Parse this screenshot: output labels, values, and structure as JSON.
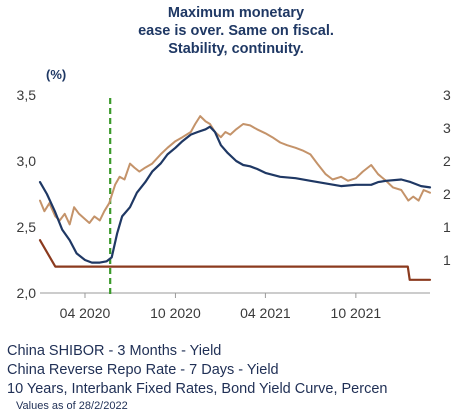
{
  "chart_data": {
    "type": "line",
    "title_lines": [
      "Maximum monetary",
      "ease is over. Same on fiscal.",
      "Stability, continuity."
    ],
    "ylabel": "(%)",
    "ylim": [
      2.0,
      3.5
    ],
    "y_ticks": [
      "3,5",
      "3,0",
      "2,5",
      "2,0"
    ],
    "right_ticks": [
      "3",
      "3",
      "2",
      "2",
      "1",
      "1"
    ],
    "x_ticks": [
      "04 2020",
      "10 2020",
      "04 2021",
      "10 2021"
    ],
    "x_tick_dates": [
      "2020-04-01",
      "2020-10-01",
      "2021-04-01",
      "2021-10-01"
    ],
    "xlim": [
      "2020-01-01",
      "2022-02-28"
    ],
    "vertical_marker": {
      "date": "2020-05-22",
      "color": "#3a9a2a",
      "style": "dashed"
    },
    "series": [
      {
        "name": "China SHIBOR - 3 Months - Yield",
        "color": "#1f3864",
        "axis": "left",
        "points": [
          [
            "2020-01-01",
            2.84
          ],
          [
            "2020-01-15",
            2.75
          ],
          [
            "2020-01-31",
            2.62
          ],
          [
            "2020-02-15",
            2.48
          ],
          [
            "2020-03-01",
            2.4
          ],
          [
            "2020-03-15",
            2.3
          ],
          [
            "2020-04-01",
            2.25
          ],
          [
            "2020-04-15",
            2.23
          ],
          [
            "2020-05-01",
            2.23
          ],
          [
            "2020-05-15",
            2.24
          ],
          [
            "2020-05-25",
            2.27
          ],
          [
            "2020-06-05",
            2.45
          ],
          [
            "2020-06-15",
            2.58
          ],
          [
            "2020-07-01",
            2.65
          ],
          [
            "2020-07-15",
            2.76
          ],
          [
            "2020-08-01",
            2.84
          ],
          [
            "2020-08-15",
            2.92
          ],
          [
            "2020-09-01",
            2.98
          ],
          [
            "2020-09-15",
            3.05
          ],
          [
            "2020-10-01",
            3.1
          ],
          [
            "2020-10-15",
            3.15
          ],
          [
            "2020-11-01",
            3.2
          ],
          [
            "2020-11-15",
            3.22
          ],
          [
            "2020-12-01",
            3.24
          ],
          [
            "2020-12-10",
            3.26
          ],
          [
            "2020-12-20",
            3.22
          ],
          [
            "2021-01-01",
            3.12
          ],
          [
            "2021-01-15",
            3.06
          ],
          [
            "2021-02-01",
            3.0
          ],
          [
            "2021-02-15",
            2.97
          ],
          [
            "2021-03-01",
            2.96
          ],
          [
            "2021-03-15",
            2.94
          ],
          [
            "2021-04-01",
            2.91
          ],
          [
            "2021-05-01",
            2.88
          ],
          [
            "2021-06-01",
            2.87
          ],
          [
            "2021-07-01",
            2.85
          ],
          [
            "2021-08-01",
            2.83
          ],
          [
            "2021-09-01",
            2.81
          ],
          [
            "2021-10-01",
            2.82
          ],
          [
            "2021-11-01",
            2.82
          ],
          [
            "2021-11-15",
            2.84
          ],
          [
            "2021-12-01",
            2.85
          ],
          [
            "2022-01-01",
            2.86
          ],
          [
            "2022-01-20",
            2.84
          ],
          [
            "2022-02-10",
            2.81
          ],
          [
            "2022-02-28",
            2.8
          ]
        ]
      },
      {
        "name": "China Reverse Repo Rate - 7 Days - Yield",
        "color": "#8b3a1e",
        "axis": "left",
        "points": [
          [
            "2020-01-01",
            2.4
          ],
          [
            "2020-02-01",
            2.2
          ],
          [
            "2020-03-31",
            2.2
          ],
          [
            "2020-04-01",
            2.2
          ],
          [
            "2022-01-14",
            2.2
          ],
          [
            "2022-01-18",
            2.1
          ],
          [
            "2022-02-28",
            2.1
          ]
        ]
      },
      {
        "name": "10 Years, Interbank Fixed Rates, Bond Yield Curve, Percen",
        "color": "#c4936a",
        "axis": "left",
        "points": [
          [
            "2020-01-01",
            2.7
          ],
          [
            "2020-01-10",
            2.62
          ],
          [
            "2020-01-20",
            2.68
          ],
          [
            "2020-02-01",
            2.58
          ],
          [
            "2020-02-10",
            2.55
          ],
          [
            "2020-02-20",
            2.6
          ],
          [
            "2020-03-01",
            2.52
          ],
          [
            "2020-03-10",
            2.65
          ],
          [
            "2020-03-20",
            2.6
          ],
          [
            "2020-04-01",
            2.56
          ],
          [
            "2020-04-10",
            2.53
          ],
          [
            "2020-04-20",
            2.58
          ],
          [
            "2020-05-01",
            2.55
          ],
          [
            "2020-05-10",
            2.62
          ],
          [
            "2020-05-20",
            2.68
          ],
          [
            "2020-06-01",
            2.82
          ],
          [
            "2020-06-10",
            2.88
          ],
          [
            "2020-06-20",
            2.86
          ],
          [
            "2020-07-01",
            2.98
          ],
          [
            "2020-07-10",
            2.95
          ],
          [
            "2020-07-20",
            2.92
          ],
          [
            "2020-08-01",
            2.95
          ],
          [
            "2020-08-15",
            2.98
          ],
          [
            "2020-09-01",
            3.05
          ],
          [
            "2020-09-15",
            3.1
          ],
          [
            "2020-10-01",
            3.15
          ],
          [
            "2020-10-15",
            3.18
          ],
          [
            "2020-11-01",
            3.22
          ],
          [
            "2020-11-10",
            3.28
          ],
          [
            "2020-11-20",
            3.34
          ],
          [
            "2020-12-01",
            3.3
          ],
          [
            "2020-12-10",
            3.28
          ],
          [
            "2020-12-20",
            3.22
          ],
          [
            "2021-01-01",
            3.18
          ],
          [
            "2021-01-10",
            3.22
          ],
          [
            "2021-01-20",
            3.2
          ],
          [
            "2021-02-01",
            3.24
          ],
          [
            "2021-02-15",
            3.28
          ],
          [
            "2021-03-01",
            3.27
          ],
          [
            "2021-03-15",
            3.24
          ],
          [
            "2021-04-01",
            3.21
          ],
          [
            "2021-04-15",
            3.18
          ],
          [
            "2021-05-01",
            3.14
          ],
          [
            "2021-05-15",
            3.12
          ],
          [
            "2021-06-01",
            3.1
          ],
          [
            "2021-06-15",
            3.08
          ],
          [
            "2021-07-01",
            3.05
          ],
          [
            "2021-07-15",
            2.98
          ],
          [
            "2021-08-01",
            2.9
          ],
          [
            "2021-08-15",
            2.86
          ],
          [
            "2021-09-01",
            2.88
          ],
          [
            "2021-09-15",
            2.85
          ],
          [
            "2021-10-01",
            2.87
          ],
          [
            "2021-10-15",
            2.92
          ],
          [
            "2021-11-01",
            2.97
          ],
          [
            "2021-11-15",
            2.9
          ],
          [
            "2021-12-01",
            2.85
          ],
          [
            "2021-12-15",
            2.8
          ],
          [
            "2022-01-01",
            2.78
          ],
          [
            "2022-01-15",
            2.7
          ],
          [
            "2022-01-25",
            2.73
          ],
          [
            "2022-02-05",
            2.7
          ],
          [
            "2022-02-15",
            2.78
          ],
          [
            "2022-02-28",
            2.76
          ]
        ]
      }
    ]
  },
  "footer": {
    "note": "Values as of 28/2/2022"
  }
}
